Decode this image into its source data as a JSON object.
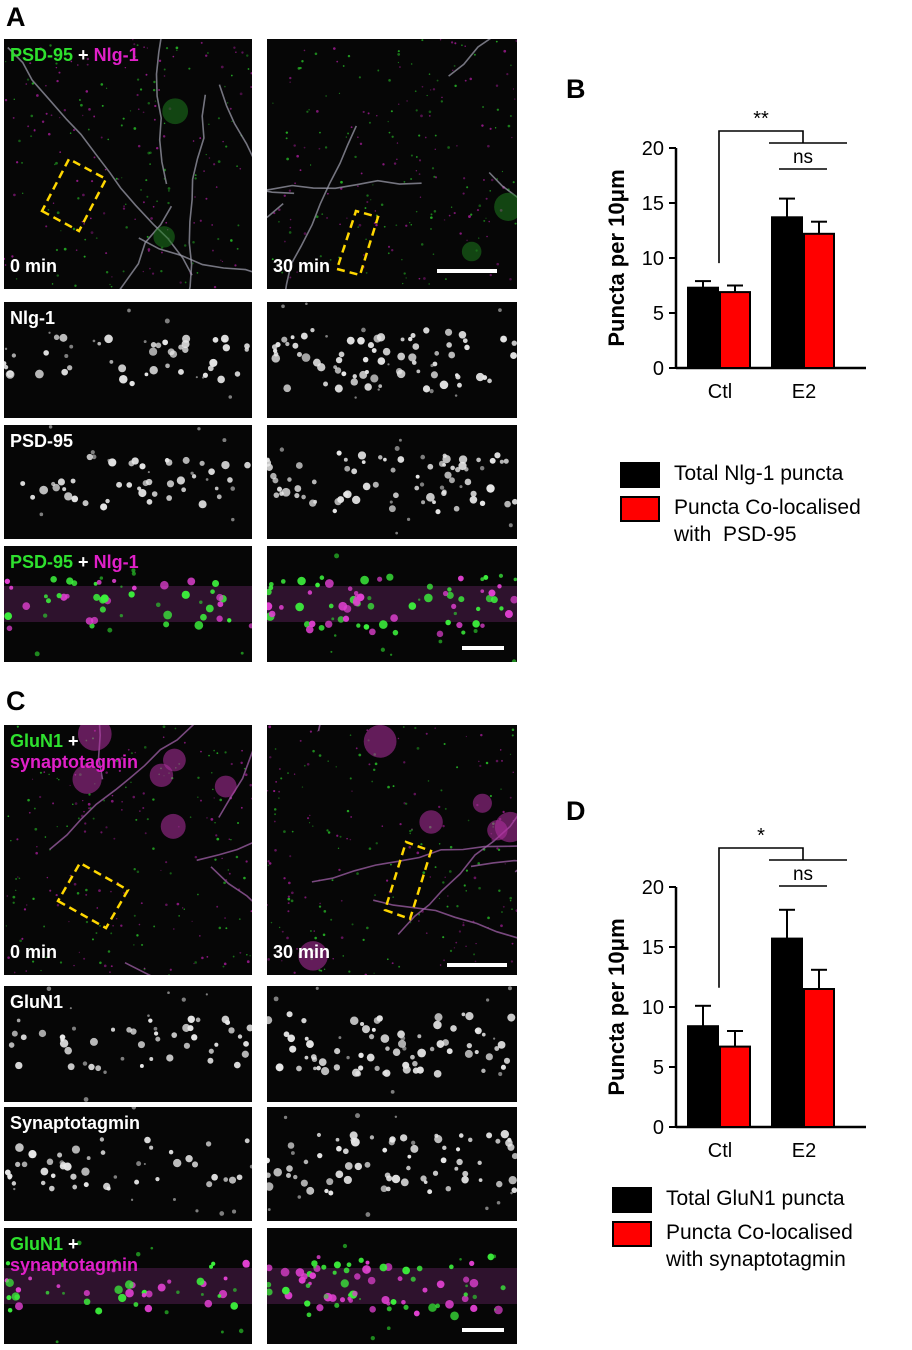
{
  "panels": {
    "A": {
      "letter": "A",
      "overview_label": {
        "p1": "PSD-95",
        "sep": "+",
        "p2": "Nlg-1"
      },
      "time_left": "0 min",
      "time_right": "30 min",
      "row_labels": [
        "Nlg-1",
        "PSD-95"
      ],
      "merge_label": {
        "p1": "PSD-95",
        "sep": "+",
        "p2": "Nlg-1"
      }
    },
    "C": {
      "letter": "C",
      "overview_label": {
        "p1": "GluN1",
        "sep": "+",
        "p2": "synaptotagmin"
      },
      "time_left": "0 min",
      "time_right": "30 min",
      "row_labels": [
        "GluN1",
        "Synaptotagmin"
      ],
      "merge_label": {
        "p1": "GluN1",
        "sep": "+",
        "p2": "synaptotagmin"
      }
    }
  },
  "colors": {
    "total": "#000000",
    "colocalised": "#ff0000",
    "green_channel": "#2ee02e",
    "magenta_channel": "#e020c8",
    "roi_box": "#ffd700"
  },
  "chart_data": [
    {
      "panel": "B",
      "type": "bar",
      "ylabel": "Puncta per 10μm",
      "categories": [
        "Ctl",
        "E2"
      ],
      "ylim": [
        0,
        20
      ],
      "yticks": [
        0,
        5,
        10,
        15,
        20
      ],
      "series": [
        {
          "name": "Total Nlg-1 puncta",
          "values": [
            7.3,
            13.7
          ],
          "errors": [
            0.6,
            1.7
          ],
          "color": "#000000"
        },
        {
          "name": "Puncta Co-localised\nwith  PSD-95",
          "values": [
            6.9,
            12.2
          ],
          "errors": [
            0.6,
            1.1
          ],
          "color": "#ff0000"
        }
      ],
      "annotations": [
        {
          "text": "**"
        },
        {
          "text": "ns"
        }
      ],
      "legend": "below"
    },
    {
      "panel": "D",
      "type": "bar",
      "ylabel": "Puncta per 10μm",
      "categories": [
        "Ctl",
        "E2"
      ],
      "ylim": [
        0,
        20
      ],
      "yticks": [
        0,
        5,
        10,
        15,
        20
      ],
      "series": [
        {
          "name": "Total GluN1 puncta",
          "values": [
            8.4,
            15.7
          ],
          "errors": [
            1.7,
            2.4
          ],
          "color": "#000000"
        },
        {
          "name": "Puncta Co-localised\nwith synaptotagmin",
          "values": [
            6.7,
            11.5
          ],
          "errors": [
            1.3,
            1.6
          ],
          "color": "#ff0000"
        }
      ],
      "annotations": [
        {
          "text": "*"
        },
        {
          "text": "ns"
        }
      ],
      "legend": "below"
    }
  ]
}
